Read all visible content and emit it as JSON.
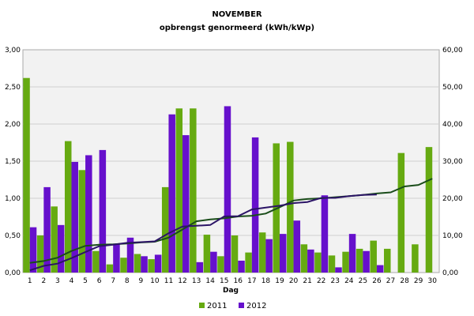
{
  "chart_data": {
    "type": "bar",
    "title": "NOVEMBER",
    "subtitle": "opbrengst genormeerd (kWh/kWp)",
    "xlabel": "Dag",
    "categories": [
      "1",
      "2",
      "3",
      "4",
      "5",
      "6",
      "7",
      "8",
      "9",
      "10",
      "11",
      "12",
      "13",
      "14",
      "15",
      "16",
      "17",
      "18",
      "19",
      "20",
      "21",
      "22",
      "23",
      "24",
      "25",
      "26",
      "27",
      "28",
      "29",
      "30"
    ],
    "ylim_left": [
      0,
      3.0
    ],
    "ylim_right": [
      0,
      60.0
    ],
    "yticks_left": [
      "0,00",
      "0,50",
      "1,00",
      "1,50",
      "2,00",
      "2,50",
      "3,00"
    ],
    "yticks_right": [
      "0,00",
      "10,00",
      "20,00",
      "30,00",
      "40,00",
      "50,00",
      "60,00"
    ],
    "grid": true,
    "legend_position": "bottom",
    "series": [
      {
        "name": "2011",
        "color": "#66aa11",
        "values": [
          2.62,
          0.5,
          0.89,
          1.77,
          1.38,
          0.29,
          0.11,
          0.2,
          0.25,
          0.18,
          1.15,
          2.21,
          2.21,
          0.51,
          0.22,
          0.5,
          0.27,
          0.54,
          1.74,
          1.76,
          0.38,
          0.27,
          0.23,
          0.28,
          0.32,
          0.43,
          0.32,
          1.61,
          0.38,
          1.69
        ]
      },
      {
        "name": "2012",
        "color": "#6610cc",
        "values": [
          0.61,
          1.15,
          0.64,
          1.49,
          1.58,
          1.65,
          0.38,
          0.47,
          0.22,
          0.24,
          2.13,
          1.85,
          0.14,
          0.28,
          2.24,
          0.16,
          1.82,
          0.45,
          0.52,
          0.7,
          0.31,
          1.04,
          0.07,
          0.52,
          0.29,
          0.1,
          null,
          null,
          null,
          null
        ]
      }
    ],
    "cumulative_series": [
      {
        "name": "2011",
        "color": "#1a4d1a",
        "axis": "right",
        "values": [
          2.6,
          3.1,
          4.0,
          5.8,
          7.2,
          7.5,
          7.6,
          7.8,
          8.1,
          8.3,
          9.4,
          11.6,
          13.8,
          14.3,
          14.6,
          15.1,
          15.3,
          15.9,
          17.6,
          19.4,
          19.8,
          20.0,
          20.3,
          20.6,
          20.9,
          21.3,
          21.6,
          23.2,
          23.6,
          25.3
        ]
      },
      {
        "name": "2012",
        "color": "#2b1466",
        "axis": "right",
        "values": [
          0.6,
          1.8,
          2.4,
          3.9,
          5.5,
          7.1,
          7.5,
          8.0,
          8.2,
          8.4,
          10.6,
          12.4,
          12.6,
          12.8,
          15.1,
          15.2,
          17.0,
          17.5,
          18.0,
          18.7,
          19.0,
          20.1,
          20.1,
          20.6,
          20.9,
          21.0,
          null,
          null,
          null,
          null
        ]
      }
    ]
  }
}
